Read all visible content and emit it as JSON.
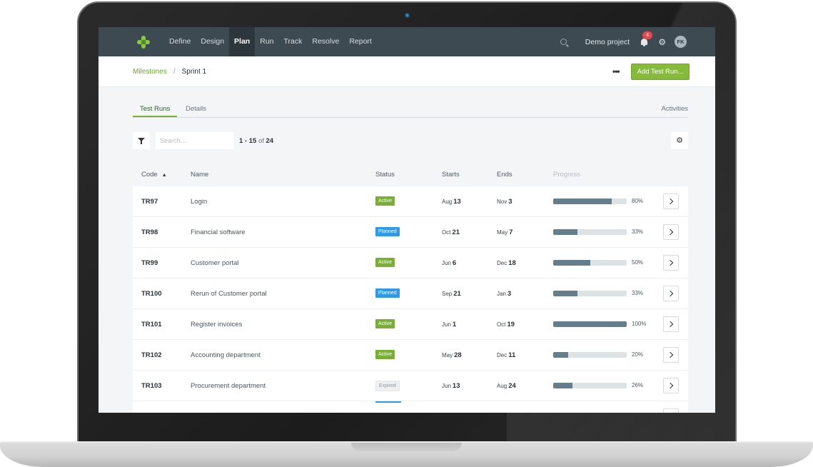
{
  "nav": {
    "items": [
      {
        "label": "Define",
        "active": false
      },
      {
        "label": "Design",
        "active": false
      },
      {
        "label": "Plan",
        "active": true
      },
      {
        "label": "Run",
        "active": false
      },
      {
        "label": "Track",
        "active": false
      },
      {
        "label": "Resolve",
        "active": false
      },
      {
        "label": "Report",
        "active": false
      }
    ],
    "project": "Demo project",
    "notifications": "4",
    "avatar": "FK"
  },
  "breadcrumb": {
    "parent": "Milestones",
    "separator": "/",
    "current": "Sprint 1"
  },
  "actions": {
    "more": "•••",
    "add_button": "Add Test Run..."
  },
  "tabs": {
    "test_runs": "Test Runs",
    "details": "Details",
    "activities": "Activities"
  },
  "toolbar": {
    "search_placeholder": "Search...",
    "range": "1 - 15",
    "of": "of",
    "total": "24"
  },
  "table": {
    "headers": {
      "code": "Code",
      "name": "Name",
      "status": "Status",
      "starts": "Starts",
      "ends": "Ends",
      "progress": "Progress"
    },
    "rows": [
      {
        "code": "TR97",
        "name": "Login",
        "status": "Active",
        "status_type": "active",
        "start_month": "Aug",
        "start_day": "13",
        "end_month": "Nov",
        "end_day": "3",
        "progress": 80,
        "progress_label": "80%"
      },
      {
        "code": "TR98",
        "name": "Financial software",
        "status": "Planned",
        "status_type": "planned",
        "start_month": "Oct",
        "start_day": "21",
        "end_month": "May",
        "end_day": "7",
        "progress": 33,
        "progress_label": "33%"
      },
      {
        "code": "TR99",
        "name": "Customer portal",
        "status": "Active",
        "status_type": "active",
        "start_month": "Jun",
        "start_day": "6",
        "end_month": "Dec",
        "end_day": "18",
        "progress": 50,
        "progress_label": "50%"
      },
      {
        "code": "TR100",
        "name": "Rerun of Customer portal",
        "status": "Planned",
        "status_type": "planned",
        "start_month": "Sep",
        "start_day": "21",
        "end_month": "Jan",
        "end_day": "3",
        "progress": 33,
        "progress_label": "33%"
      },
      {
        "code": "TR101",
        "name": "Register invoices",
        "status": "Active",
        "status_type": "active",
        "start_month": "Jun",
        "start_day": "1",
        "end_month": "Oct",
        "end_day": "19",
        "progress": 100,
        "progress_label": "100%"
      },
      {
        "code": "TR102",
        "name": "Accounting department",
        "status": "Active",
        "status_type": "active",
        "start_month": "May",
        "start_day": "28",
        "end_month": "Dec",
        "end_day": "11",
        "progress": 20,
        "progress_label": "20%"
      },
      {
        "code": "TR103",
        "name": "Procurement department",
        "status": "Expired",
        "status_type": "expired",
        "start_month": "Jun",
        "start_day": "13",
        "end_month": "Aug",
        "end_day": "24",
        "progress": 26,
        "progress_label": "26%"
      }
    ]
  },
  "colors": {
    "nav_bg": "#3d4a52",
    "accent_green": "#86bb3a",
    "status_active": "#7aae37",
    "status_planned": "#2f9be4",
    "progress_fill": "#647f8b"
  }
}
